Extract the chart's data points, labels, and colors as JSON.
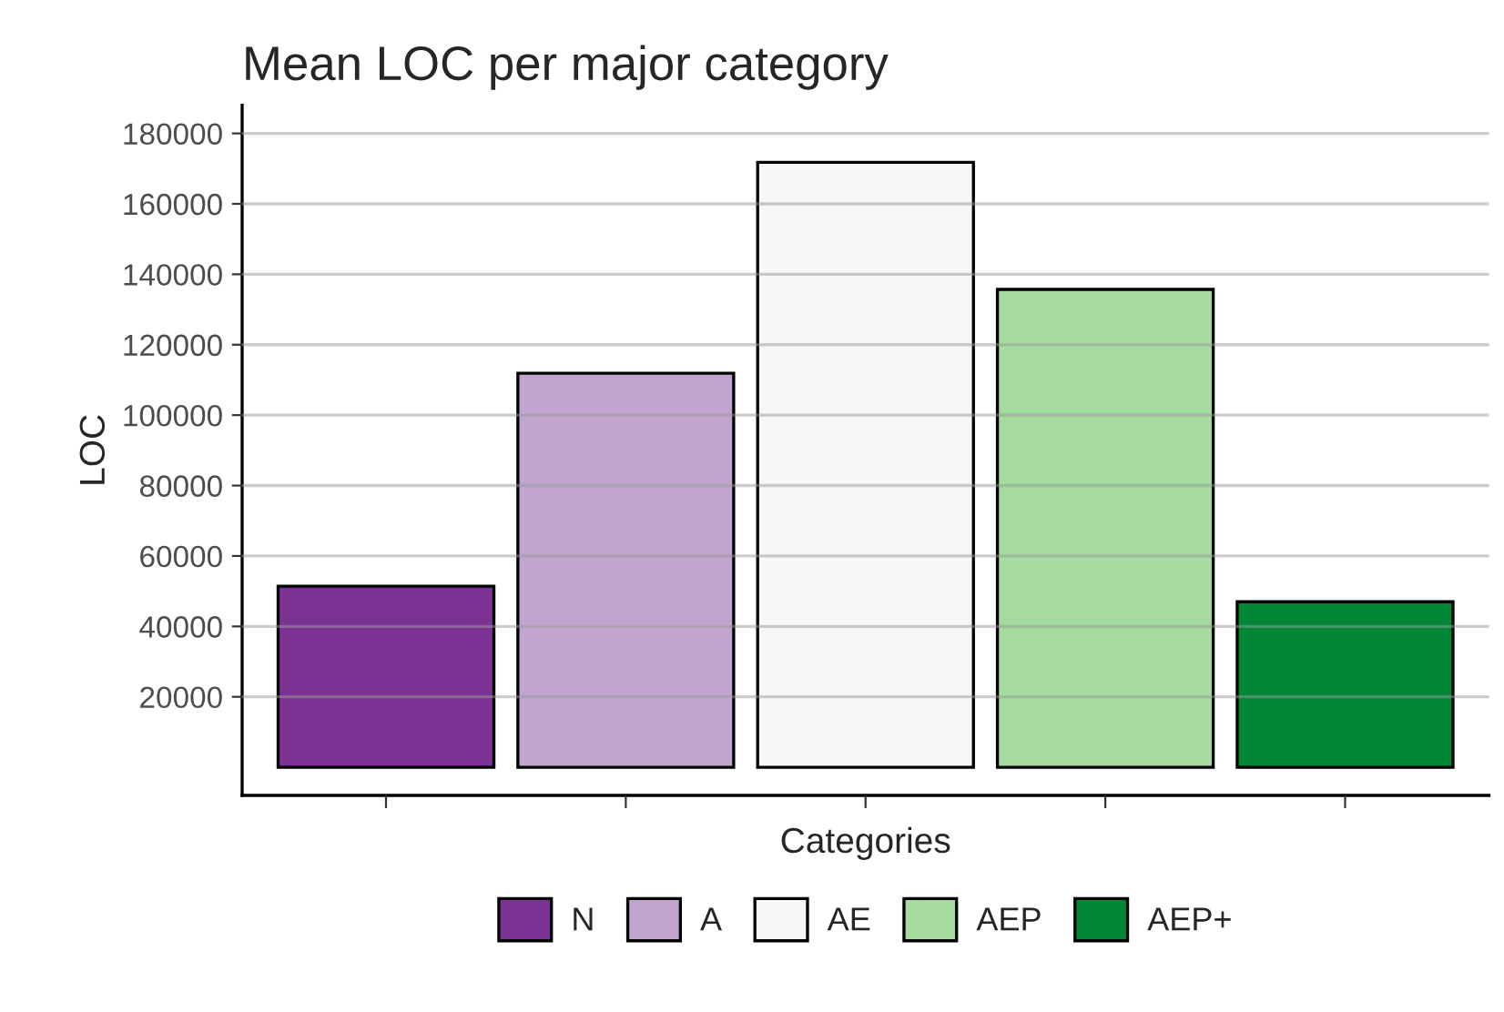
{
  "chart_data": {
    "type": "bar",
    "title": "Mean LOC per major category",
    "xlabel": "Categories",
    "ylabel": "LOC",
    "categories": [
      null,
      null,
      null,
      null,
      null
    ],
    "series": [
      {
        "name": "N",
        "color": "#7b3294",
        "values": [
          51400,
          null,
          null,
          null,
          null
        ]
      },
      {
        "name": "A",
        "color": "#c2a5cf",
        "values": [
          null,
          111900,
          null,
          null,
          null
        ]
      },
      {
        "name": "AE",
        "color": "#f7f7f7",
        "values": [
          null,
          null,
          171800,
          null,
          null
        ]
      },
      {
        "name": "AEP",
        "color": "#a6dba0",
        "values": [
          null,
          null,
          null,
          135700,
          null
        ]
      },
      {
        "name": "AEP+",
        "color": "#008837",
        "values": [
          null,
          null,
          null,
          null,
          47000
        ]
      }
    ],
    "ylim": [
      -8000,
      188000
    ],
    "yticks": [
      20000,
      40000,
      60000,
      80000,
      100000,
      120000,
      140000,
      160000,
      180000
    ],
    "grid": "y",
    "legend": "bottom"
  }
}
